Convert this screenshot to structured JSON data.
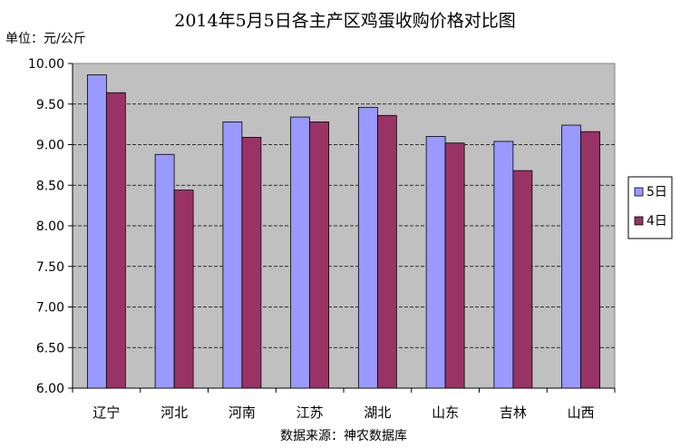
{
  "chart_data": {
    "type": "bar",
    "title": "2014年5月5日各主产区鸡蛋收购价格对比图",
    "unit_label": "单位：元/公斤",
    "source_note": "数据来源：神农数据库",
    "categories": [
      "辽宁",
      "河北",
      "河南",
      "江苏",
      "湖北",
      "山东",
      "吉林",
      "山西"
    ],
    "series": [
      {
        "name": "5日",
        "color": "#9999ff",
        "values": [
          9.86,
          8.88,
          9.28,
          9.34,
          9.46,
          9.1,
          9.04,
          9.24
        ]
      },
      {
        "name": "4日",
        "color": "#993366",
        "values": [
          9.64,
          8.44,
          9.09,
          9.28,
          9.36,
          9.02,
          8.68,
          9.16
        ]
      }
    ],
    "ylim": [
      6.0,
      10.0
    ],
    "yticks": [
      "6.00",
      "6.50",
      "7.00",
      "7.50",
      "8.00",
      "8.50",
      "9.00",
      "9.50",
      "10.00"
    ],
    "grid": true,
    "plot_background": "#c0c0c0",
    "legend_position": "right"
  }
}
